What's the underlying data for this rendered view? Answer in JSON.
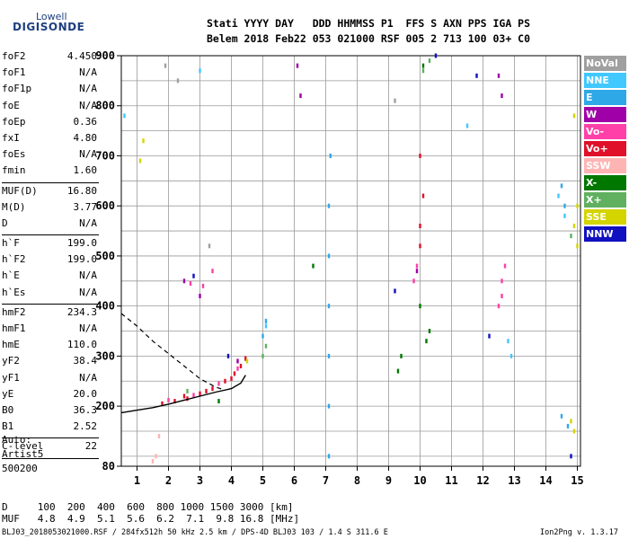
{
  "logo": {
    "line1": "Lowell",
    "line2": "DIGISONDE"
  },
  "header": {
    "line1": "Stati YYYY DAY   DDD HHMMSS P1  FFS S AXN PPS IGA PS",
    "line2": "Belem 2018 Feb22 053 021000 RSF 005 2 713 100 03+ C0"
  },
  "params": [
    {
      "name": "foF2",
      "value": "4.450"
    },
    {
      "name": "foF1",
      "value": "N/A"
    },
    {
      "name": "foF1p",
      "value": "N/A"
    },
    {
      "name": "foE",
      "value": "N/A"
    },
    {
      "name": "foEp",
      "value": "0.36"
    },
    {
      "name": "fxI",
      "value": "4.80"
    },
    {
      "name": "foEs",
      "value": "N/A"
    },
    {
      "name": "fmin",
      "value": "1.60"
    },
    {
      "sep": true
    },
    {
      "name": "MUF(D)",
      "value": "16.80"
    },
    {
      "name": "M(D)",
      "value": "3.77"
    },
    {
      "name": "D",
      "value": "N/A"
    },
    {
      "sep": true
    },
    {
      "name": "h`F",
      "value": "199.0"
    },
    {
      "name": "h`F2",
      "value": "199.0"
    },
    {
      "name": "h`E",
      "value": "N/A"
    },
    {
      "name": "h`Es",
      "value": "N/A"
    },
    {
      "sep": true
    },
    {
      "name": "hmF2",
      "value": "234.3"
    },
    {
      "name": "hmF1",
      "value": "N/A"
    },
    {
      "name": "hmE",
      "value": "110.0"
    },
    {
      "name": "yF2",
      "value": "38.4"
    },
    {
      "name": "yF1",
      "value": "N/A"
    },
    {
      "name": "yE",
      "value": "20.0"
    },
    {
      "name": "B0",
      "value": "36.3"
    },
    {
      "name": "B1",
      "value": "2.52"
    },
    {
      "sep": true
    },
    {
      "name": "C-level",
      "value": "22"
    },
    {
      "sep": true
    }
  ],
  "auto": {
    "line1": "Auto:",
    "line2": "Artist5",
    "line3": "500200"
  },
  "freq_table": {
    "d_line": "D     100  200  400  600  800 1000 1500 3000 [km]",
    "muf_line": "MUF   4.8  4.9  5.1  5.6  6.2  7.1  9.8 16.8 [MHz]"
  },
  "footer": {
    "text": "BLJ03_2018053021000.RSF / 284fx512h 50 kHz 2.5 km / DPS-4D BLJ03 103 / 1.4 S 311.6 E",
    "version": "Ion2Png v. 1.3.17"
  },
  "legend": [
    {
      "label": "NoVal",
      "color": "#a0a0a0"
    },
    {
      "label": "NNE",
      "color": "#40c8ff"
    },
    {
      "label": "E",
      "color": "#2fa8e8"
    },
    {
      "label": "W",
      "color": "#a000a8"
    },
    {
      "label": "Vo-",
      "color": "#ff40a8"
    },
    {
      "label": "Vo+",
      "color": "#e0102a"
    },
    {
      "label": "SSW",
      "color": "#ffb4b4"
    },
    {
      "label": "X-",
      "color": "#007800"
    },
    {
      "label": "X+",
      "color": "#60b060"
    },
    {
      "label": "SSE",
      "color": "#d4d400"
    },
    {
      "label": "NNW",
      "color": "#1010c0"
    }
  ],
  "chart_data": {
    "type": "scatter",
    "xlabel": "",
    "ylabel": "",
    "xlim": [
      0.5,
      15.1
    ],
    "ylim": [
      80,
      900
    ],
    "x_ticks": [
      "1",
      "2",
      "3",
      "4",
      "5",
      "6",
      "7",
      "8",
      "9",
      "10",
      "11",
      "12",
      "13",
      "14",
      "15"
    ],
    "y_ticks": [
      "80",
      "200",
      "300",
      "400",
      "500",
      "600",
      "700",
      "800",
      "900"
    ],
    "grid": true,
    "series": [
      {
        "name": "Vo+",
        "color": "#e0102a",
        "points": [
          [
            1.8,
            205
          ],
          [
            2.2,
            210
          ],
          [
            2.6,
            215
          ],
          [
            3.0,
            225
          ],
          [
            3.4,
            235
          ],
          [
            3.8,
            250
          ],
          [
            4.1,
            265
          ],
          [
            4.3,
            280
          ],
          [
            4.45,
            295
          ],
          [
            2.5,
            220
          ],
          [
            3.2,
            230
          ],
          [
            4.0,
            255
          ],
          [
            10.0,
            520
          ],
          [
            10.0,
            560
          ],
          [
            10.1,
            620
          ],
          [
            10.0,
            700
          ]
        ]
      },
      {
        "name": "Vo-",
        "color": "#ff40a8",
        "points": [
          [
            2.0,
            212
          ],
          [
            2.8,
            222
          ],
          [
            3.6,
            245
          ],
          [
            4.2,
            275
          ],
          [
            9.8,
            450
          ],
          [
            9.9,
            480
          ],
          [
            12.6,
            420
          ],
          [
            12.6,
            450
          ],
          [
            12.7,
            480
          ],
          [
            12.5,
            400
          ],
          [
            3.1,
            440
          ],
          [
            3.4,
            470
          ],
          [
            2.7,
            445
          ]
        ]
      },
      {
        "name": "X-",
        "color": "#007800",
        "points": [
          [
            9.3,
            270
          ],
          [
            9.4,
            300
          ],
          [
            10.2,
            330
          ],
          [
            10.3,
            350
          ],
          [
            10.0,
            400
          ],
          [
            6.6,
            480
          ],
          [
            3.6,
            210
          ],
          [
            10.1,
            880
          ]
        ]
      },
      {
        "name": "X+",
        "color": "#60b060",
        "points": [
          [
            5.0,
            300
          ],
          [
            5.1,
            320
          ],
          [
            10.3,
            890
          ],
          [
            10.1,
            870
          ],
          [
            14.8,
            540
          ],
          [
            2.6,
            230
          ]
        ]
      },
      {
        "name": "E",
        "color": "#2fa8e8",
        "points": [
          [
            7.1,
            100
          ],
          [
            7.1,
            200
          ],
          [
            7.1,
            300
          ],
          [
            7.1,
            400
          ],
          [
            7.1,
            500
          ],
          [
            7.1,
            600
          ],
          [
            7.15,
            700
          ],
          [
            5.0,
            340
          ],
          [
            5.1,
            370
          ],
          [
            14.5,
            180
          ],
          [
            14.7,
            160
          ],
          [
            14.5,
            640
          ],
          [
            14.6,
            600
          ]
        ]
      },
      {
        "name": "NNE",
        "color": "#40c8ff",
        "points": [
          [
            14.4,
            620
          ],
          [
            14.6,
            580
          ],
          [
            12.8,
            330
          ],
          [
            12.9,
            300
          ],
          [
            11.5,
            760
          ],
          [
            5.1,
            360
          ],
          [
            3.0,
            870
          ],
          [
            0.6,
            780
          ]
        ]
      },
      {
        "name": "W",
        "color": "#a000a8",
        "points": [
          [
            6.1,
            880
          ],
          [
            6.2,
            820
          ],
          [
            12.5,
            860
          ],
          [
            12.6,
            820
          ],
          [
            2.5,
            450
          ],
          [
            3.0,
            420
          ],
          [
            9.9,
            470
          ],
          [
            4.2,
            290
          ]
        ]
      },
      {
        "name": "SSE",
        "color": "#d4d400",
        "points": [
          [
            14.9,
            150
          ],
          [
            14.8,
            170
          ],
          [
            15.0,
            520
          ],
          [
            14.9,
            560
          ],
          [
            15.0,
            600
          ],
          [
            14.9,
            780
          ],
          [
            1.1,
            690
          ],
          [
            1.2,
            730
          ],
          [
            4.5,
            290
          ]
        ]
      },
      {
        "name": "NNW",
        "color": "#1010c0",
        "points": [
          [
            9.2,
            430
          ],
          [
            11.8,
            860
          ],
          [
            3.9,
            300
          ],
          [
            2.8,
            460
          ],
          [
            12.2,
            340
          ],
          [
            10.5,
            900
          ],
          [
            14.8,
            100
          ]
        ]
      },
      {
        "name": "SSW",
        "color": "#ffb4b4",
        "points": [
          [
            1.6,
            100
          ],
          [
            1.7,
            140
          ],
          [
            1.5,
            90
          ]
        ]
      },
      {
        "name": "NoVal",
        "color": "#a0a0a0",
        "points": [
          [
            1.9,
            880
          ],
          [
            2.3,
            850
          ],
          [
            9.2,
            810
          ],
          [
            3.3,
            520
          ]
        ]
      }
    ],
    "trace_solid": [
      [
        0.5,
        187
      ],
      [
        1.0,
        192
      ],
      [
        1.5,
        197
      ],
      [
        2.0,
        204
      ],
      [
        2.5,
        212
      ],
      [
        3.0,
        220
      ],
      [
        3.5,
        228
      ],
      [
        4.0,
        235
      ],
      [
        4.3,
        246
      ],
      [
        4.45,
        262
      ]
    ],
    "trace_dashed": [
      [
        0.5,
        385
      ],
      [
        1.0,
        360
      ],
      [
        1.5,
        330
      ],
      [
        2.0,
        305
      ],
      [
        2.5,
        280
      ],
      [
        3.0,
        255
      ],
      [
        3.5,
        238
      ],
      [
        3.8,
        232
      ]
    ]
  }
}
